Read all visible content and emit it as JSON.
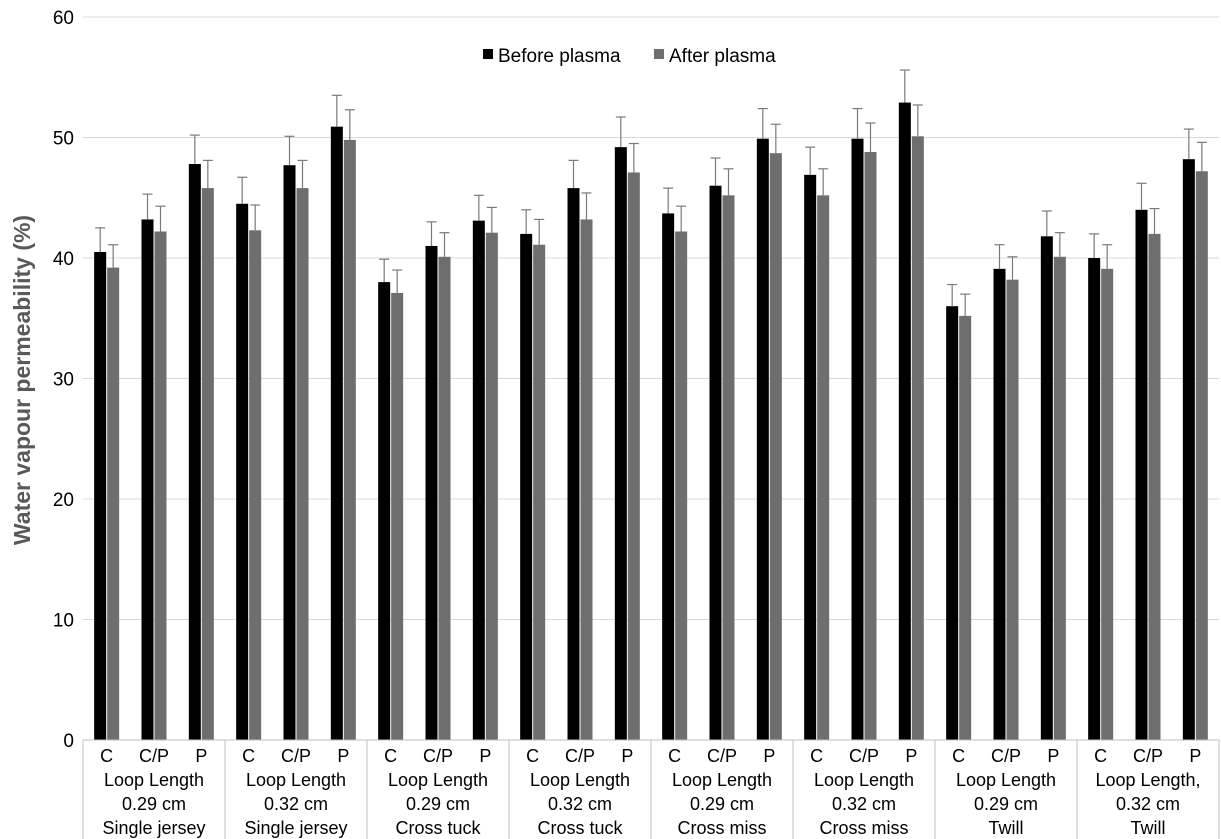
{
  "chart_data": {
    "type": "bar",
    "title": "",
    "ylabel": "Water vapour permeability (%)",
    "xlabel": "",
    "ylim": [
      0,
      60
    ],
    "yticks": [
      0,
      10,
      20,
      30,
      40,
      50,
      60
    ],
    "grid": true,
    "legend_position": "top-center",
    "colors": {
      "before": "#000000",
      "after": "#6e6e6e",
      "grid": "#d9d9d9",
      "axis_text": "#000000",
      "ylabel_text": "#595959"
    },
    "groups": [
      {
        "lines": [
          "Loop Length",
          "0.29 cm",
          "Single jersey"
        ]
      },
      {
        "lines": [
          "Loop Length",
          "0.32 cm",
          "Single jersey"
        ]
      },
      {
        "lines": [
          "Loop Length",
          "0.29 cm",
          "Cross tuck"
        ]
      },
      {
        "lines": [
          "Loop Length",
          "0.32 cm",
          "Cross tuck"
        ]
      },
      {
        "lines": [
          "Loop Length",
          "0.29 cm",
          "Cross miss"
        ]
      },
      {
        "lines": [
          "Loop Length",
          "0.32 cm",
          "Cross miss"
        ]
      },
      {
        "lines": [
          "Loop Length",
          "0.29 cm",
          "Twill"
        ]
      },
      {
        "lines": [
          "Loop Length,",
          "0.32 cm",
          "Twill"
        ]
      }
    ],
    "subcategories": [
      "C",
      "C/P",
      "P"
    ],
    "series": [
      {
        "name": "Before plasma",
        "color": "#000000",
        "values": [
          40.5,
          43.2,
          47.8,
          44.5,
          47.7,
          50.9,
          38.0,
          41.0,
          43.1,
          42.0,
          45.8,
          49.2,
          43.7,
          46.0,
          49.9,
          46.9,
          49.9,
          52.9,
          36.0,
          39.1,
          41.8,
          40.0,
          44.0,
          48.2
        ],
        "errors": [
          2.0,
          2.1,
          2.4,
          2.2,
          2.4,
          2.6,
          1.9,
          2.0,
          2.1,
          2.0,
          2.3,
          2.5,
          2.1,
          2.3,
          2.5,
          2.3,
          2.5,
          2.7,
          1.8,
          2.0,
          2.1,
          2.0,
          2.2,
          2.5
        ]
      },
      {
        "name": "After plasma",
        "color": "#6e6e6e",
        "values": [
          39.2,
          42.2,
          45.8,
          42.3,
          45.8,
          49.8,
          37.1,
          40.1,
          42.1,
          41.1,
          43.2,
          47.1,
          42.2,
          45.2,
          48.7,
          45.2,
          48.8,
          50.1,
          35.2,
          38.2,
          40.1,
          39.1,
          42.0,
          47.2
        ],
        "errors": [
          1.9,
          2.1,
          2.3,
          2.1,
          2.3,
          2.5,
          1.9,
          2.0,
          2.1,
          2.1,
          2.2,
          2.4,
          2.1,
          2.2,
          2.4,
          2.2,
          2.4,
          2.6,
          1.8,
          1.9,
          2.0,
          2.0,
          2.1,
          2.4
        ]
      }
    ]
  }
}
